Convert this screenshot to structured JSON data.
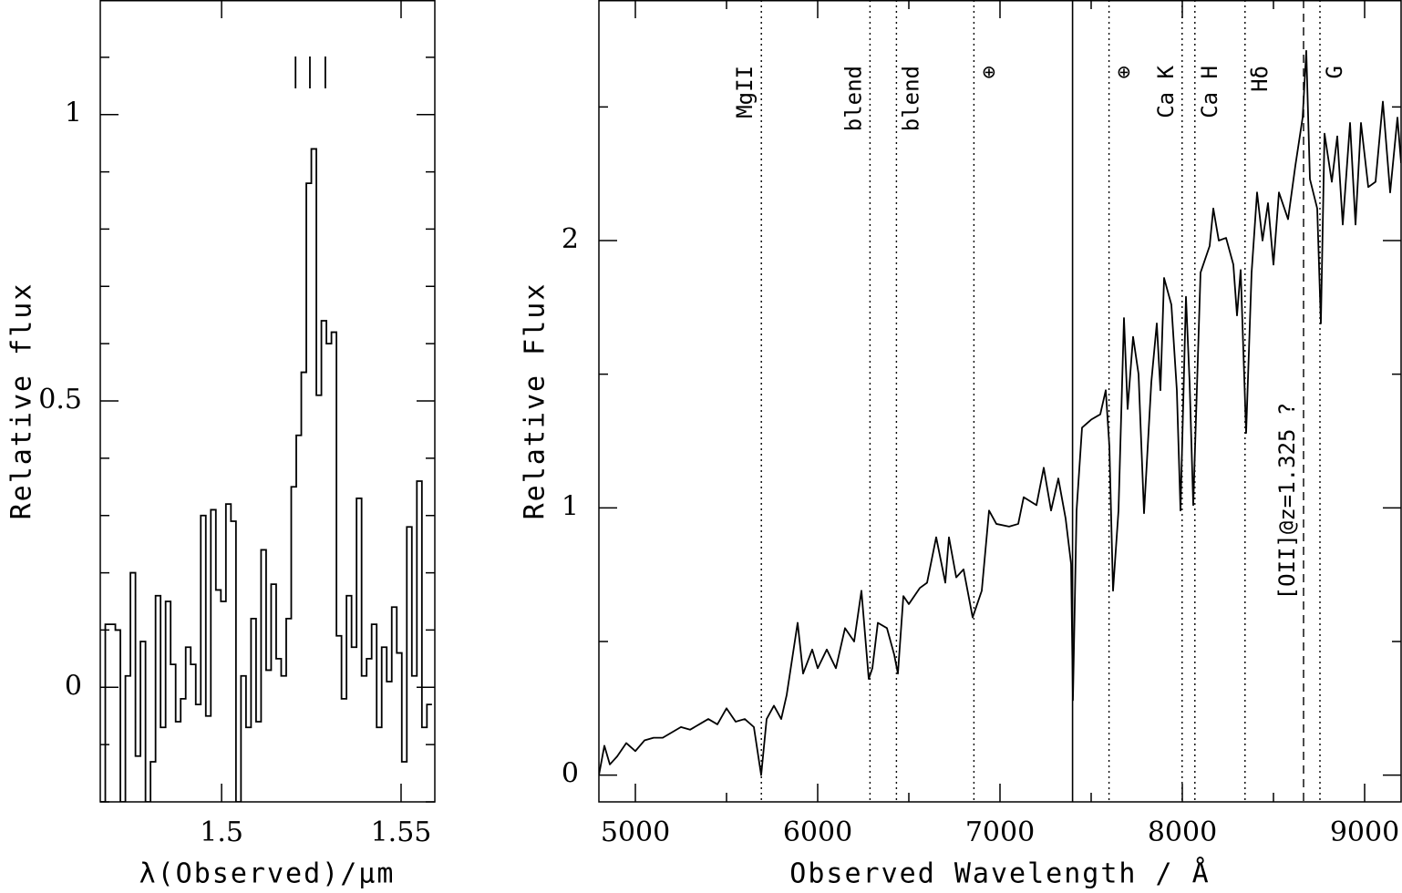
{
  "chart_data": [
    {
      "type": "histogram",
      "xlabel": "λ(Observed)/μm",
      "ylabel": "Relative flux",
      "xlim": [
        1.4662,
        1.5594
      ],
      "ylim": [
        -0.2,
        1.2
      ],
      "xticks": [
        1.5,
        1.55
      ],
      "yticks": [
        0,
        0.5,
        1
      ],
      "yminor": [
        -0.2,
        -0.1,
        0.1,
        0.2,
        0.3,
        0.4,
        0.6,
        0.7,
        0.8,
        0.9,
        1.1,
        1.2
      ],
      "color": "#000000",
      "bins": [
        1.4662,
        1.4676,
        1.469,
        1.4704,
        1.4718,
        1.4732,
        1.4746,
        1.476,
        1.4774,
        1.4788,
        1.4802,
        1.4816,
        1.483,
        1.4844,
        1.4858,
        1.4872,
        1.4886,
        1.49,
        1.4914,
        1.4928,
        1.4942,
        1.4956,
        1.497,
        1.4984,
        1.4998,
        1.5012,
        1.5026,
        1.504,
        1.5054,
        1.5068,
        1.5082,
        1.5096,
        1.511,
        1.5124,
        1.5138,
        1.5152,
        1.5166,
        1.518,
        1.5194,
        1.5208,
        1.5222,
        1.5236,
        1.525,
        1.5264,
        1.5278,
        1.5292,
        1.5306,
        1.532,
        1.5334,
        1.5348,
        1.5362,
        1.5376,
        1.539,
        1.5404,
        1.5418,
        1.5432,
        1.5446,
        1.546,
        1.5474,
        1.5488,
        1.5502,
        1.5516,
        1.553,
        1.5544,
        1.5558,
        1.5572,
        1.5586
      ],
      "values": [
        -0.2,
        0.11,
        0.11,
        0.1,
        -0.2,
        0.02,
        0.2,
        -0.12,
        0.08,
        -0.2,
        -0.13,
        0.16,
        -0.07,
        0.15,
        0.04,
        -0.06,
        -0.02,
        0.07,
        0.04,
        -0.03,
        0.3,
        -0.05,
        0.31,
        0.17,
        0.15,
        0.32,
        0.29,
        -0.2,
        0.02,
        -0.07,
        0.12,
        -0.06,
        0.24,
        0.03,
        0.18,
        0.05,
        0.02,
        0.12,
        0.35,
        0.44,
        0.55,
        0.88,
        0.94,
        0.51,
        0.64,
        0.6,
        0.62,
        0.09,
        -0.02,
        0.16,
        0.07,
        0.33,
        0.02,
        0.05,
        0.11,
        -0.07,
        0.07,
        0.01,
        0.14,
        0.06,
        -0.13,
        0.28,
        0.02,
        0.36,
        -0.07,
        -0.03
      ],
      "markers": [
        1.5206,
        1.5246,
        1.5289
      ]
    },
    {
      "type": "line",
      "xlabel": "Observed Wavelength / Å",
      "ylabel": "Relative Flux",
      "xlim": [
        4800,
        9200
      ],
      "ylim": [
        -0.1,
        2.9
      ],
      "xticks": [
        5000,
        6000,
        7000,
        8000,
        9000
      ],
      "yticks": [
        0,
        1,
        2
      ],
      "xminor": [
        5500,
        6500,
        7500,
        8500
      ],
      "yminor": [
        0.5,
        1.5,
        2.5
      ],
      "color": "#000000",
      "x": [
        4800,
        4830,
        4860,
        4900,
        4950,
        5000,
        5050,
        5100,
        5150,
        5200,
        5250,
        5300,
        5350,
        5400,
        5450,
        5500,
        5550,
        5600,
        5650,
        5690,
        5720,
        5760,
        5800,
        5830,
        5890,
        5920,
        5970,
        6000,
        6050,
        6100,
        6150,
        6200,
        6240,
        6280,
        6300,
        6330,
        6380,
        6420,
        6440,
        6470,
        6500,
        6560,
        6600,
        6650,
        6700,
        6720,
        6760,
        6800,
        6850,
        6900,
        6940,
        6980,
        7050,
        7100,
        7130,
        7200,
        7240,
        7280,
        7320,
        7360,
        7390,
        7400,
        7420,
        7450,
        7500,
        7550,
        7580,
        7600,
        7620,
        7650,
        7680,
        7700,
        7730,
        7760,
        7790,
        7830,
        7860,
        7880,
        7900,
        7940,
        7970,
        7990,
        8020,
        8040,
        8060,
        8100,
        8150,
        8170,
        8200,
        8240,
        8280,
        8300,
        8320,
        8350,
        8380,
        8410,
        8440,
        8470,
        8500,
        8530,
        8580,
        8620,
        8660,
        8680,
        8700,
        8740,
        8760,
        8780,
        8820,
        8850,
        8880,
        8920,
        8950,
        8980,
        9020,
        9060,
        9100,
        9140,
        9180,
        9200
      ],
      "values": [
        0,
        0.11,
        0.04,
        0.07,
        0.12,
        0.09,
        0.13,
        0.14,
        0.14,
        0.16,
        0.18,
        0.17,
        0.19,
        0.21,
        0.19,
        0.25,
        0.2,
        0.21,
        0.18,
        0,
        0.21,
        0.26,
        0.21,
        0.3,
        0.57,
        0.38,
        0.47,
        0.4,
        0.47,
        0.4,
        0.55,
        0.5,
        0.69,
        0.36,
        0.4,
        0.57,
        0.55,
        0.45,
        0.38,
        0.67,
        0.64,
        0.7,
        0.72,
        0.89,
        0.72,
        0.89,
        0.74,
        0.77,
        0.59,
        0.69,
        0.99,
        0.94,
        0.93,
        0.94,
        1.04,
        1.01,
        1.15,
        0.99,
        1.11,
        0.96,
        0.79,
        0.28,
        0.99,
        1.3,
        1.33,
        1.35,
        1.44,
        1.23,
        0.69,
        0.99,
        1.71,
        1.37,
        1.64,
        1.5,
        0.98,
        1.47,
        1.69,
        1.44,
        1.86,
        1.76,
        1.44,
        0.99,
        1.79,
        1.47,
        1.01,
        1.88,
        1.98,
        2.12,
        2.0,
        2.01,
        1.91,
        1.72,
        1.89,
        1.28,
        1.88,
        2.18,
        2.0,
        2.14,
        1.91,
        2.18,
        2.08,
        2.28,
        2.46,
        2.71,
        2.23,
        2.12,
        1.69,
        2.4,
        2.22,
        2.39,
        2.06,
        2.44,
        2.06,
        2.44,
        2.2,
        2.22,
        2.52,
        2.18,
        2.46,
        2.29
      ],
      "lines": [
        {
          "x": 5691,
          "label": "MgII",
          "style": "dotted",
          "side": "left"
        },
        {
          "x": 6287,
          "label": "blend",
          "style": "dotted",
          "side": "left"
        },
        {
          "x": 6432,
          "label": "blend",
          "style": "dotted",
          "side": "right"
        },
        {
          "x": 6857,
          "label": "⊕",
          "style": "dotted",
          "side": "right"
        },
        {
          "x": 7398,
          "style": "solid"
        },
        {
          "x": 7598,
          "label": "⊕",
          "style": "dotted",
          "side": "right"
        },
        {
          "x": 7999,
          "label": "Ca K",
          "style": "dotted",
          "side": "left"
        },
        {
          "x": 8069,
          "label": "Ca H",
          "style": "dotted",
          "side": "right"
        },
        {
          "x": 8344,
          "label": "Hδ",
          "style": "dotted",
          "side": "right"
        },
        {
          "x": 8665,
          "label": "[OII]@z=1.325 ?",
          "style": "dashed",
          "side": "left"
        },
        {
          "x": 8755,
          "label": "G",
          "style": "dotted",
          "side": "right"
        }
      ]
    }
  ]
}
